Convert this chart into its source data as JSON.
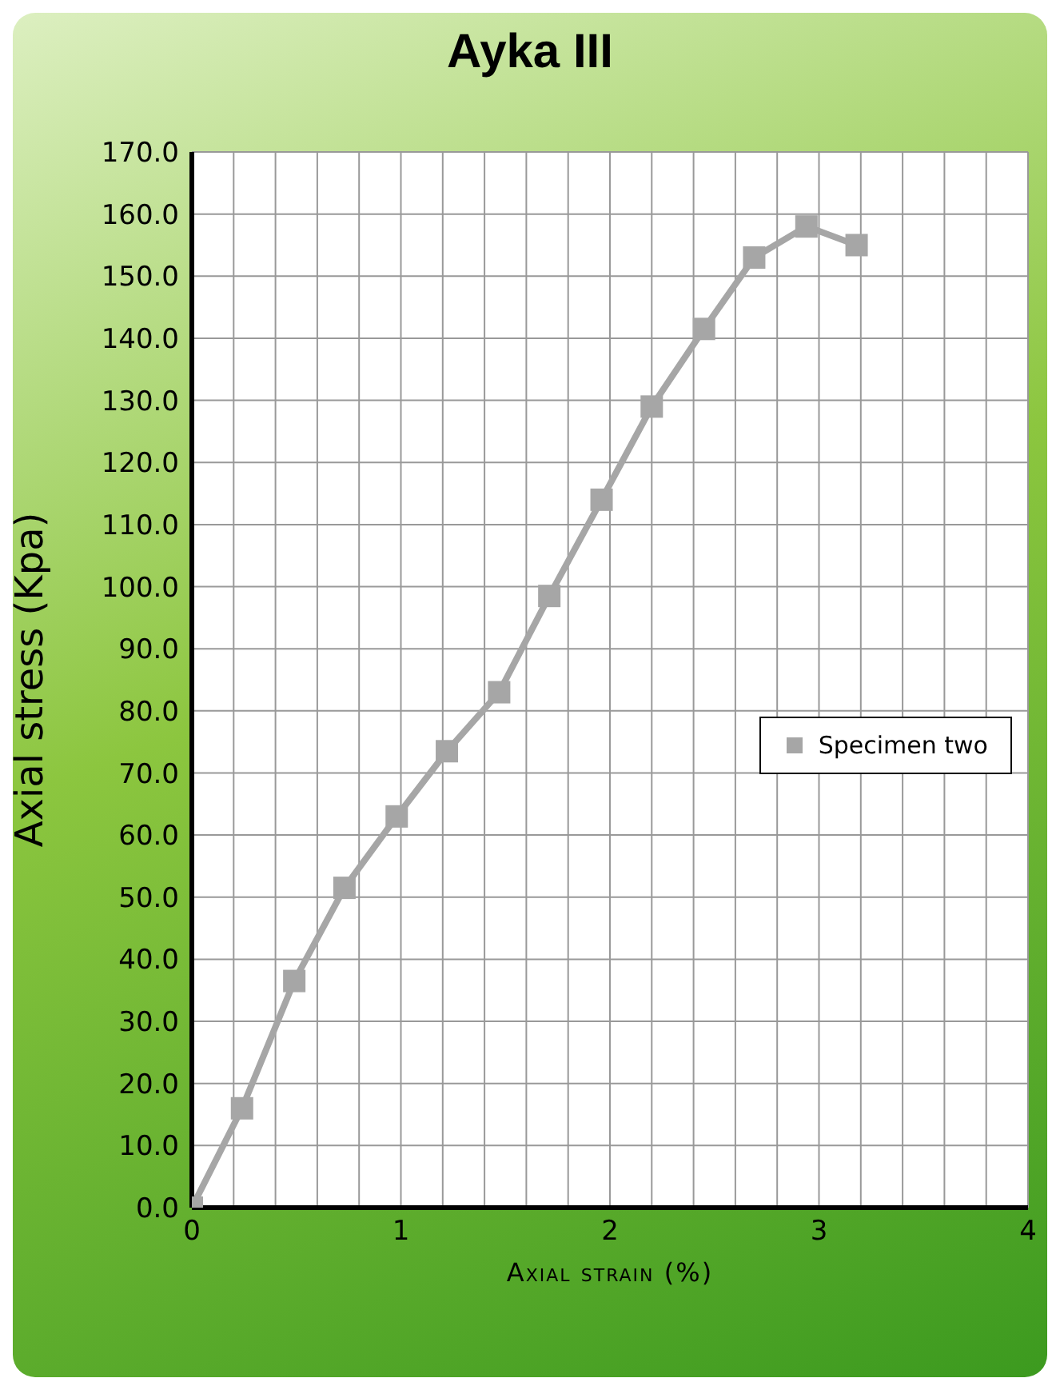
{
  "chart_data": {
    "type": "line",
    "title": "Ayka III",
    "xlabel": "Axial strain (%)",
    "ylabel": "Axial stress (Kpa)",
    "x": [
      0,
      0.24,
      0.49,
      0.73,
      0.98,
      1.22,
      1.47,
      1.71,
      1.96,
      2.2,
      2.45,
      2.69,
      2.94,
      3.18
    ],
    "series": [
      {
        "name": "Specimen two",
        "color": "#a6a6a6",
        "values": [
          0,
          16,
          36.5,
          51.5,
          63,
          73.5,
          83,
          98.5,
          114,
          129,
          141.5,
          153,
          158,
          155
        ]
      }
    ],
    "xlim": [
      0,
      4
    ],
    "xticks": [
      0,
      {
        "value": 0.2,
        "label": null
      },
      {
        "value": 0.4,
        "label": null
      },
      {
        "value": 0.6,
        "label": null
      },
      {
        "value": 0.8,
        "label": null
      },
      1,
      {
        "value": 1.2,
        "label": null
      },
      {
        "value": 1.4,
        "label": null
      },
      {
        "value": 1.6,
        "label": null
      },
      {
        "value": 1.8,
        "label": null
      },
      2,
      {
        "value": 2.2,
        "label": null
      },
      {
        "value": 2.4,
        "label": null
      },
      {
        "value": 2.6,
        "label": null
      },
      {
        "value": 2.8,
        "label": null
      },
      3,
      {
        "value": 3.2,
        "label": null
      },
      {
        "value": 3.4,
        "label": null
      },
      {
        "value": 3.6,
        "label": null
      },
      {
        "value": 3.8,
        "label": null
      },
      4
    ],
    "ylim": [
      0,
      170
    ],
    "yticks": [
      {
        "value": 0,
        "label": "0.0"
      },
      {
        "value": 10,
        "label": "10.0"
      },
      {
        "value": 20,
        "label": "20.0"
      },
      {
        "value": 30,
        "label": "30.0"
      },
      {
        "value": 40,
        "label": "40.0"
      },
      {
        "value": 50,
        "label": "50.0"
      },
      {
        "value": 60,
        "label": "60.0"
      },
      {
        "value": 70,
        "label": "70.0"
      },
      {
        "value": 80,
        "label": "80.0"
      },
      {
        "value": 90,
        "label": "90.0"
      },
      {
        "value": 100,
        "label": "100.0"
      },
      {
        "value": 110,
        "label": "110.0"
      },
      {
        "value": 120,
        "label": "120.0"
      },
      {
        "value": 130,
        "label": "130.0"
      },
      {
        "value": 140,
        "label": "140.0"
      },
      {
        "value": 150,
        "label": "150.0"
      },
      {
        "value": 160,
        "label": "160.0"
      },
      {
        "value": 170,
        "label": "170.0"
      }
    ],
    "grid": true,
    "legend": "right",
    "marker": "square",
    "line_style": "solid"
  }
}
